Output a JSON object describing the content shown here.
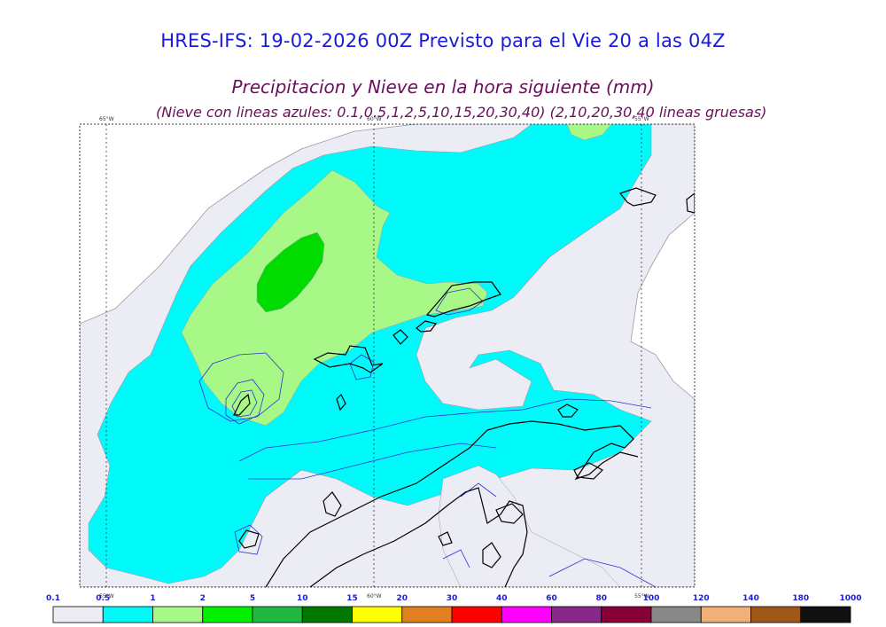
{
  "header": {
    "title": "HRES-IFS: 19-02-2026 00Z Previsto para el Vie 20 a las 04Z",
    "subtitle": "Precipitacion y Nieve en la hora siguiente (mm)",
    "note": "(Nieve con lineas azules: 0.1,0.5,1,2,5,10,15,20,30,40)  (2,10,20,30,40 lineas gruesas)"
  },
  "map": {
    "meridians_top": [
      "65°W",
      "60°W",
      "55°W"
    ],
    "meridians_bottom": [
      "65°W",
      "60°W",
      "55°W"
    ]
  },
  "colors": {
    "ocean_bg": "#ffffff",
    "light_precip": "#ececf4",
    "cyan": "#00fafa",
    "light_green": "#a8f888",
    "green": "#00dc00",
    "coast": "#000000",
    "snow_contour": "#3030d8"
  },
  "legend": {
    "labels": [
      "0.1",
      "0.5",
      "1",
      "2",
      "5",
      "10",
      "15",
      "20",
      "30",
      "40",
      "60",
      "80",
      "100",
      "120",
      "140",
      "180",
      "1000"
    ],
    "colors": [
      "#ececf4",
      "#00fafa",
      "#a8f888",
      "#00f000",
      "#20b840",
      "#007800",
      "#ffff00",
      "#e08020",
      "#ff0000",
      "#ff00ff",
      "#882888",
      "#880038",
      "#888888",
      "#f0b078",
      "#a05818",
      "#101010"
    ]
  }
}
